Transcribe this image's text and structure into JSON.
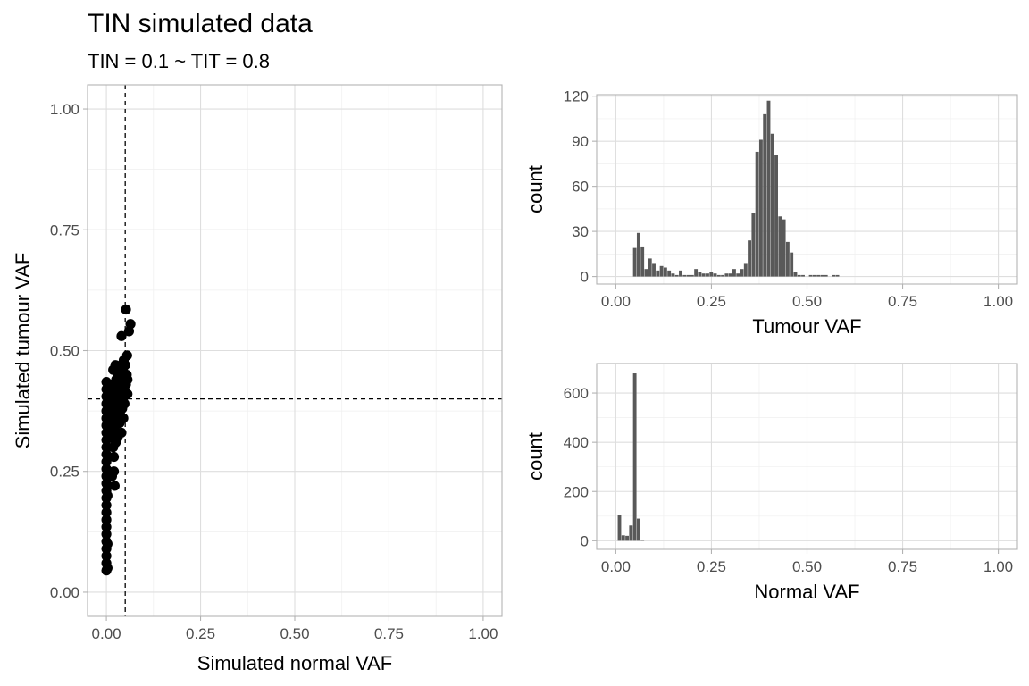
{
  "title": "TIN simulated data",
  "subtitle": "TIN = 0.1 ~ TIT = 0.8",
  "chart_data": [
    {
      "type": "scatter",
      "xlabel": "Simulated normal VAF",
      "ylabel": "Simulated tumour VAF",
      "xlim": [
        -0.05,
        1.05
      ],
      "ylim": [
        -0.05,
        1.05
      ],
      "xticks": [
        "0.00",
        "0.25",
        "0.50",
        "0.75",
        "1.00"
      ],
      "yticks": [
        "0.00",
        "0.25",
        "0.50",
        "0.75",
        "1.00"
      ],
      "grid": true,
      "ref_lines": {
        "vertical": 0.05,
        "horizontal": 0.4
      },
      "points": [
        [
          0.0,
          0.045
        ],
        [
          0.0,
          0.06
        ],
        [
          0.0,
          0.075
        ],
        [
          0.0,
          0.09
        ],
        [
          0.0,
          0.105
        ],
        [
          0.0,
          0.12
        ],
        [
          0.0,
          0.135
        ],
        [
          0.0,
          0.15
        ],
        [
          0.0,
          0.165
        ],
        [
          0.0,
          0.18
        ],
        [
          0.0,
          0.195
        ],
        [
          0.0,
          0.21
        ],
        [
          0.0,
          0.225
        ],
        [
          0.0,
          0.24
        ],
        [
          0.0,
          0.255
        ],
        [
          0.0,
          0.27
        ],
        [
          0.0,
          0.285
        ],
        [
          0.0,
          0.3
        ],
        [
          0.0,
          0.315
        ],
        [
          0.0,
          0.33
        ],
        [
          0.0,
          0.345
        ],
        [
          0.0,
          0.36
        ],
        [
          0.0,
          0.375
        ],
        [
          0.0,
          0.39
        ],
        [
          0.0,
          0.405
        ],
        [
          0.0,
          0.42
        ],
        [
          0.0,
          0.435
        ],
        [
          0.003,
          0.05
        ],
        [
          0.003,
          0.1
        ],
        [
          0.003,
          0.2
        ],
        [
          0.003,
          0.35
        ],
        [
          0.004,
          0.38
        ],
        [
          0.004,
          0.41
        ],
        [
          0.004,
          0.43
        ],
        [
          0.008,
          0.34
        ],
        [
          0.008,
          0.37
        ],
        [
          0.008,
          0.4
        ],
        [
          0.008,
          0.43
        ],
        [
          0.01,
          0.36
        ],
        [
          0.01,
          0.39
        ],
        [
          0.01,
          0.42
        ],
        [
          0.012,
          0.32
        ],
        [
          0.013,
          0.35
        ],
        [
          0.014,
          0.38
        ],
        [
          0.014,
          0.41
        ],
        [
          0.016,
          0.43
        ],
        [
          0.016,
          0.33
        ],
        [
          0.015,
          0.24
        ],
        [
          0.02,
          0.25
        ],
        [
          0.022,
          0.22
        ],
        [
          0.018,
          0.3
        ],
        [
          0.02,
          0.4
        ],
        [
          0.022,
          0.37
        ],
        [
          0.022,
          0.34
        ],
        [
          0.024,
          0.39
        ],
        [
          0.024,
          0.42
        ],
        [
          0.026,
          0.36
        ],
        [
          0.026,
          0.44
        ],
        [
          0.028,
          0.35
        ],
        [
          0.028,
          0.41
        ],
        [
          0.03,
          0.38
        ],
        [
          0.03,
          0.45
        ],
        [
          0.032,
          0.36
        ],
        [
          0.032,
          0.42
        ],
        [
          0.034,
          0.4
        ],
        [
          0.034,
          0.46
        ],
        [
          0.036,
          0.37
        ],
        [
          0.036,
          0.43
        ],
        [
          0.038,
          0.39
        ],
        [
          0.038,
          0.45
        ],
        [
          0.04,
          0.41
        ],
        [
          0.04,
          0.47
        ],
        [
          0.042,
          0.38
        ],
        [
          0.042,
          0.44
        ],
        [
          0.044,
          0.4
        ],
        [
          0.044,
          0.46
        ],
        [
          0.046,
          0.42
        ],
        [
          0.046,
          0.48
        ],
        [
          0.048,
          0.39
        ],
        [
          0.048,
          0.45
        ],
        [
          0.05,
          0.41
        ],
        [
          0.05,
          0.47
        ],
        [
          0.052,
          0.43
        ],
        [
          0.054,
          0.45
        ],
        [
          0.055,
          0.49
        ],
        [
          0.056,
          0.41
        ],
        [
          0.056,
          0.44
        ],
        [
          0.035,
          0.35
        ],
        [
          0.04,
          0.33
        ],
        [
          0.03,
          0.32
        ],
        [
          0.045,
          0.36
        ],
        [
          0.02,
          0.28
        ],
        [
          0.025,
          0.31
        ],
        [
          0.018,
          0.46
        ],
        [
          0.024,
          0.47
        ],
        [
          0.04,
          0.53
        ],
        [
          0.052,
          0.585
        ],
        [
          0.06,
          0.54
        ],
        [
          0.064,
          0.555
        ]
      ]
    },
    {
      "type": "bar",
      "xlabel": "Tumour VAF",
      "ylabel": "count",
      "xlim": [
        -0.05,
        1.05
      ],
      "ylim": [
        -5,
        121
      ],
      "xticks": [
        "0.00",
        "0.25",
        "0.50",
        "0.75",
        "1.00"
      ],
      "yticks": [
        "0",
        "30",
        "60",
        "90",
        "120"
      ],
      "grid": true,
      "bin_width": 0.01,
      "bins": [
        [
          0.05,
          19
        ],
        [
          0.06,
          29
        ],
        [
          0.07,
          20
        ],
        [
          0.08,
          5
        ],
        [
          0.09,
          12
        ],
        [
          0.1,
          9
        ],
        [
          0.11,
          4
        ],
        [
          0.12,
          7
        ],
        [
          0.13,
          6
        ],
        [
          0.14,
          4
        ],
        [
          0.15,
          2
        ],
        [
          0.16,
          1
        ],
        [
          0.17,
          4
        ],
        [
          0.18,
          1
        ],
        [
          0.19,
          1
        ],
        [
          0.2,
          1
        ],
        [
          0.21,
          5
        ],
        [
          0.22,
          3
        ],
        [
          0.23,
          2
        ],
        [
          0.24,
          2
        ],
        [
          0.25,
          3
        ],
        [
          0.26,
          2
        ],
        [
          0.27,
          1
        ],
        [
          0.28,
          1
        ],
        [
          0.29,
          2
        ],
        [
          0.3,
          2
        ],
        [
          0.31,
          5
        ],
        [
          0.32,
          2
        ],
        [
          0.33,
          5
        ],
        [
          0.34,
          9
        ],
        [
          0.35,
          24
        ],
        [
          0.36,
          42
        ],
        [
          0.37,
          83
        ],
        [
          0.38,
          91
        ],
        [
          0.39,
          108
        ],
        [
          0.4,
          117
        ],
        [
          0.41,
          95
        ],
        [
          0.42,
          81
        ],
        [
          0.43,
          40
        ],
        [
          0.44,
          38
        ],
        [
          0.45,
          23
        ],
        [
          0.46,
          16
        ],
        [
          0.47,
          3
        ],
        [
          0.48,
          1
        ],
        [
          0.49,
          1
        ],
        [
          0.5,
          0
        ],
        [
          0.51,
          1
        ],
        [
          0.52,
          1
        ],
        [
          0.53,
          1
        ],
        [
          0.54,
          1
        ],
        [
          0.55,
          1
        ],
        [
          0.57,
          1
        ],
        [
          0.58,
          1
        ]
      ]
    },
    {
      "type": "bar",
      "xlabel": "Normal VAF",
      "ylabel": "count",
      "xlim": [
        -0.05,
        1.05
      ],
      "ylim": [
        -35,
        720
      ],
      "xticks": [
        "0.00",
        "0.25",
        "0.50",
        "0.75",
        "1.00"
      ],
      "yticks": [
        "0",
        "200",
        "400",
        "600"
      ],
      "grid": true,
      "bin_width": 0.01,
      "bins": [
        [
          0.01,
          105
        ],
        [
          0.02,
          22
        ],
        [
          0.03,
          20
        ],
        [
          0.04,
          62
        ],
        [
          0.05,
          680
        ],
        [
          0.06,
          90
        ],
        [
          0.07,
          3
        ]
      ]
    }
  ]
}
